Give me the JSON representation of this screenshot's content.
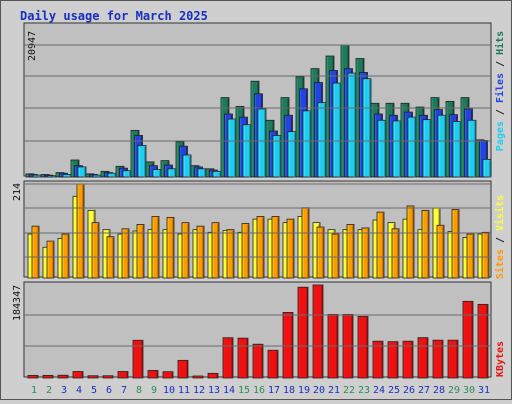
{
  "chart_data": [
    {
      "type": "bar",
      "title": "Daily usage for March 2025",
      "categories": [
        "1",
        "2",
        "3",
        "4",
        "5",
        "6",
        "7",
        "8",
        "9",
        "10",
        "11",
        "12",
        "13",
        "14",
        "15",
        "16",
        "17",
        "18",
        "19",
        "20",
        "21",
        "22",
        "23",
        "24",
        "25",
        "26",
        "27",
        "28",
        "29",
        "30",
        "31"
      ],
      "weekend_days": [
        "1",
        "2",
        "8",
        "9",
        "15",
        "16",
        "22",
        "23",
        "29",
        "30"
      ],
      "y_tick_label": "20947",
      "ylim": [
        0,
        20947
      ],
      "axis_legend": [
        "Pages",
        "Files",
        "Hits"
      ],
      "series": [
        {
          "name": "Hits",
          "color": "#1e7a5a",
          "values": [
            500,
            400,
            700,
            2700,
            500,
            900,
            1700,
            7400,
            2400,
            2600,
            5600,
            1800,
            1300,
            12600,
            11200,
            15200,
            9000,
            12600,
            15900,
            17200,
            19200,
            20947,
            18800,
            11700,
            11700,
            11700,
            11100,
            12600,
            12000,
            12600,
            5900
          ]
        },
        {
          "name": "Files",
          "color": "#2244dd",
          "values": [
            400,
            300,
            600,
            1800,
            400,
            700,
            1400,
            6600,
            1800,
            1900,
            4900,
            1600,
            1100,
            10000,
            9500,
            13200,
            7300,
            9800,
            14000,
            15000,
            16900,
            17200,
            16600,
            10000,
            9800,
            10300,
            9800,
            10700,
            9900,
            10800,
            5800
          ]
        },
        {
          "name": "Pages",
          "color": "#22ccf0",
          "values": [
            300,
            200,
            400,
            1600,
            300,
            600,
            1000,
            5000,
            1200,
            1300,
            3500,
            1300,
            900,
            9200,
            8300,
            10800,
            6600,
            7200,
            10500,
            11800,
            14900,
            16500,
            15600,
            9000,
            8900,
            9500,
            9100,
            9800,
            8800,
            9000,
            2800
          ]
        }
      ]
    },
    {
      "type": "bar",
      "categories": [
        "1",
        "2",
        "3",
        "4",
        "5",
        "6",
        "7",
        "8",
        "9",
        "10",
        "11",
        "12",
        "13",
        "14",
        "15",
        "16",
        "17",
        "18",
        "19",
        "20",
        "21",
        "22",
        "23",
        "24",
        "25",
        "26",
        "27",
        "28",
        "29",
        "30",
        "31"
      ],
      "y_tick_label": "214",
      "ylim": [
        0,
        214
      ],
      "axis_legend": [
        "Sites",
        "Visits"
      ],
      "series": [
        {
          "name": "Visits",
          "color": "#ffff33",
          "values": [
            100,
            70,
            90,
            186,
            154,
            110,
            100,
            107,
            110,
            110,
            100,
            110,
            104,
            108,
            104,
            134,
            134,
            126,
            140,
            126,
            110,
            110,
            110,
            132,
            126,
            134,
            110,
            159,
            106,
            92,
            100
          ]
        },
        {
          "name": "Sites",
          "color": "#ff9900",
          "values": [
            118,
            84,
            100,
            214,
            126,
            94,
            112,
            122,
            140,
            138,
            126,
            118,
            126,
            110,
            124,
            140,
            140,
            134,
            160,
            116,
            100,
            122,
            114,
            150,
            112,
            164,
            154,
            120,
            156,
            100,
            104
          ]
        }
      ]
    },
    {
      "type": "bar",
      "categories": [
        "1",
        "2",
        "3",
        "4",
        "5",
        "6",
        "7",
        "8",
        "9",
        "10",
        "11",
        "12",
        "13",
        "14",
        "15",
        "16",
        "17",
        "18",
        "19",
        "20",
        "21",
        "22",
        "23",
        "24",
        "25",
        "26",
        "27",
        "28",
        "29",
        "30",
        "31"
      ],
      "y_tick_label": "184347",
      "ylim": [
        0,
        184347
      ],
      "axis_legend": [
        "KBytes"
      ],
      "series": [
        {
          "name": "KBytes",
          "color": "#ee1111",
          "values": [
            5200,
            5200,
            5500,
            12900,
            4500,
            4500,
            12900,
            74800,
            15000,
            12500,
            35000,
            4000,
            9300,
            79800,
            79000,
            67000,
            55000,
            130000,
            180000,
            184347,
            126000,
            126000,
            122000,
            73000,
            72000,
            73000,
            80000,
            75000,
            75000,
            152000,
            146000
          ]
        }
      ]
    }
  ],
  "colors": {
    "background": "#cfcfcf",
    "plot_background": "#c0c0c0",
    "title_color": "#1a2fbe",
    "weekday_label_color": "#1a2fbe",
    "weekend_label_color": "#2e8b57",
    "sites_legend_color": "#ff9900",
    "visits_legend_color": "#ffff33",
    "kbytes_legend_color": "#ee1111"
  }
}
